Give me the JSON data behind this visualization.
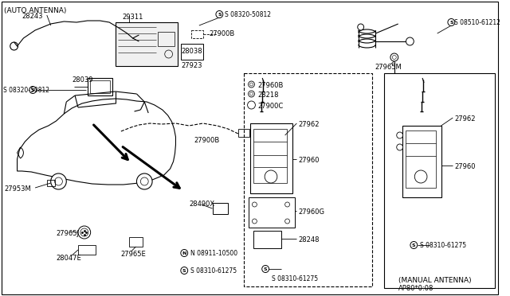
{
  "bg_color": "#ffffff",
  "line_color": "#000000",
  "text_color": "#000000",
  "auto_antenna": "(AUTO ANTENNA)",
  "manual_antenna": "(MANUAL ANTENNA)",
  "part_code": "AP80*0:08",
  "labels": {
    "29311": "29311",
    "28243": "28243",
    "28039": "28039",
    "28038": "28038",
    "27923": "27923",
    "27900B": "27900B",
    "27953M": "27953M",
    "27965J": "27965J",
    "28047E": "28047E",
    "27965E": "27965E",
    "28490X": "28490X",
    "27960B": "27960B",
    "28218": "28218",
    "27900C": "27900C",
    "27962": "27962",
    "27960": "27960",
    "27960G": "27960G",
    "28248": "28248",
    "27965M": "27965M",
    "s_08320_50812": "S 08320-50812",
    "s_08510_61212": "S 08510-61212",
    "s_08310_61275": "S 08310-61275",
    "n_08911_10500": "N 08911-10500"
  }
}
